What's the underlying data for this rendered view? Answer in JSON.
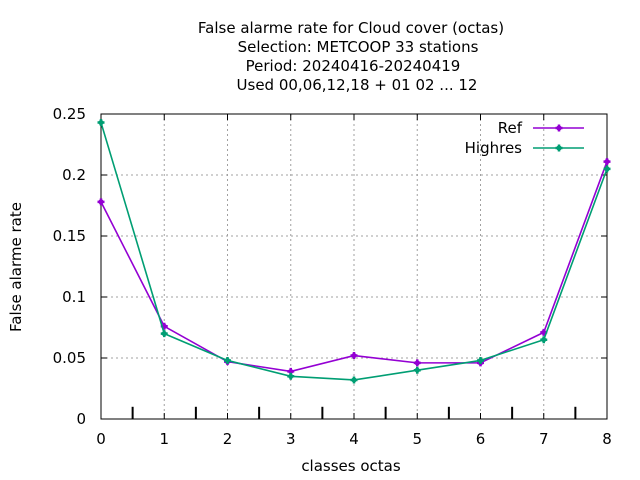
{
  "chart_data": {
    "type": "line",
    "title_lines": [
      "False alarme rate  for Cloud cover (octas)",
      "Selection: METCOOP     33 stations",
      "Period: 20240416-20240419",
      "Used  00,06,12,18 + 01 02 ... 12"
    ],
    "xlabel": "classes octas",
    "ylabel": "False alarme rate",
    "xlim": [
      0,
      8
    ],
    "ylim": [
      0,
      0.25
    ],
    "x_ticks": [
      "0",
      "1",
      "2",
      "3",
      "4",
      "5",
      "6",
      "7",
      "8"
    ],
    "y_ticks": [
      "0",
      "0.05",
      "0.1",
      "0.15",
      "0.2",
      "0.25"
    ],
    "x_tick_values": [
      0,
      1,
      2,
      3,
      4,
      5,
      6,
      7,
      8
    ],
    "y_tick_values": [
      0,
      0.05,
      0.1,
      0.15,
      0.2,
      0.25
    ],
    "boundary_marks": [
      0.5,
      1.5,
      2.5,
      3.5,
      4.5,
      5.5,
      6.5,
      7.5
    ],
    "boundary_mark_height": 0.01,
    "grid": true,
    "legend_position": "top-right",
    "x": [
      0,
      1,
      2,
      3,
      4,
      5,
      6,
      7,
      8
    ],
    "series": [
      {
        "name": "Ref",
        "color": "#9400d3",
        "values": [
          0.178,
          0.076,
          0.047,
          0.039,
          0.052,
          0.046,
          0.046,
          0.071,
          0.211
        ]
      },
      {
        "name": "Highres",
        "color": "#009e73",
        "values": [
          0.243,
          0.07,
          0.048,
          0.035,
          0.032,
          0.04,
          0.048,
          0.065,
          0.205
        ]
      }
    ]
  }
}
